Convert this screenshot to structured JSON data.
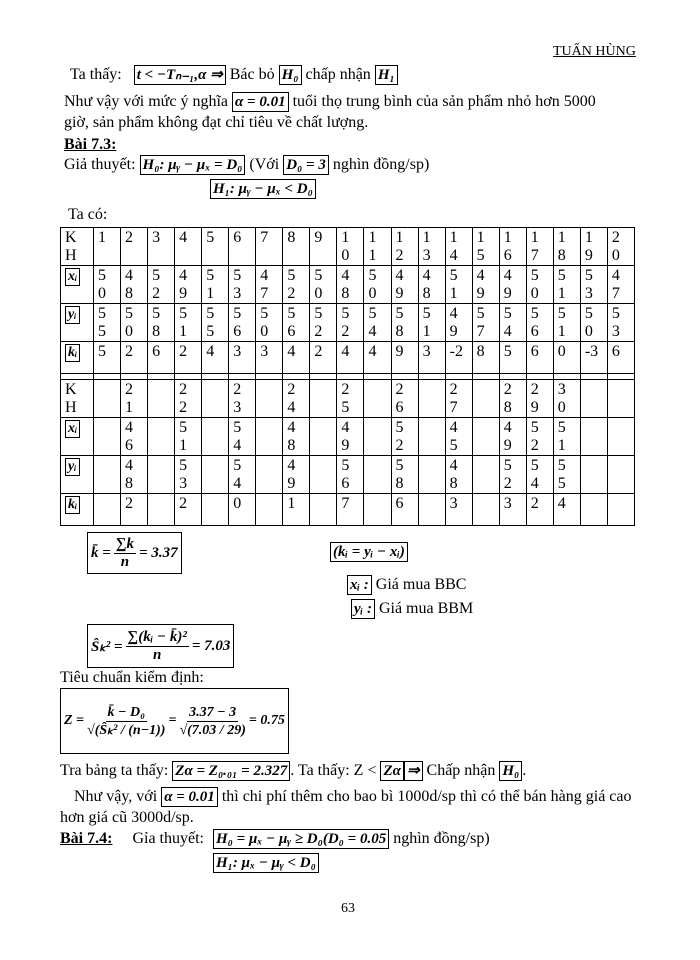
{
  "header": {
    "author": "TUẤN HÙNG"
  },
  "p1": {
    "label": "Ta thấy:",
    "cond": "t < −Tₙ₋₁,α ⇒",
    "t1": "Bác bỏ",
    "h0": "H₀",
    "t2": "chấp nhận",
    "h1": "H₁"
  },
  "p2": {
    "t1": "Như vậy với mức ý nghĩa",
    "alpha": "α = 0.01",
    "t2": "tuổi thọ trung bình của sản phẩm nhỏ hơn 5000",
    "line2": "giờ, sản phẩm không đạt chỉ tiêu về chất lượng."
  },
  "ex73": {
    "title": "Bài 7.3:",
    "hyp_label": "Giả thuyết:",
    "h0": "H₀: μᵧ − μₓ = D₀",
    "with": "(Với",
    "d0": "D₀ = 3",
    "unit": "nghìn đồng/sp)",
    "h1": "H₁: μᵧ − μₓ < D₀",
    "taco": "Ta có:"
  },
  "table": {
    "labels": {
      "kh1": "K",
      "kh2": "H",
      "x": "xᵢ",
      "y": "yᵢ",
      "k": "kᵢ"
    },
    "part1": {
      "kh": [
        "1",
        "2",
        "3",
        "4",
        "5",
        "6",
        "7",
        "8",
        "9",
        "1\n0",
        "1\n1",
        "1\n2",
        "1\n3",
        "1\n4",
        "1\n5",
        "1\n6",
        "1\n7",
        "1\n8",
        "1\n9",
        "2\n0"
      ],
      "x": [
        "5\n0",
        "4\n8",
        "5\n2",
        "4\n9",
        "5\n1",
        "5\n3",
        "4\n7",
        "5\n2",
        "5\n0",
        "4\n8",
        "5\n0",
        "4\n9",
        "4\n8",
        "5\n1",
        "4\n9",
        "4\n9",
        "5\n0",
        "5\n1",
        "5\n3",
        "4\n7"
      ],
      "y": [
        "5\n5",
        "5\n0",
        "5\n8",
        "5\n1",
        "5\n5",
        "5\n6",
        "5\n0",
        "5\n6",
        "5\n2",
        "5\n2",
        "5\n4",
        "5\n8",
        "5\n1",
        "4\n9",
        "5\n7",
        "5\n4",
        "5\n6",
        "5\n1",
        "5\n0",
        "5\n3"
      ],
      "k": [
        "5",
        "2",
        "6",
        "2",
        "4",
        "3",
        "3",
        "4",
        "2",
        "4",
        "4",
        "9",
        "3",
        "-2",
        "8",
        "5",
        "6",
        "0",
        "-3",
        "6"
      ]
    },
    "part2": {
      "kh": [
        "",
        "2\n1",
        "",
        "2\n2",
        "",
        "2\n3",
        "",
        "2\n4",
        "",
        "2\n5",
        "",
        "2\n6",
        "",
        "2\n7",
        "",
        "2\n8",
        "2\n9",
        "3\n0",
        "",
        ""
      ],
      "x": [
        "",
        "4\n6",
        "",
        "5\n1",
        "",
        "5\n4",
        "",
        "4\n8",
        "",
        "4\n9",
        "",
        "5\n2",
        "",
        "4\n5",
        "",
        "4\n9",
        "5\n2",
        "5\n1",
        "",
        ""
      ],
      "y": [
        "",
        "4\n8",
        "",
        "5\n3",
        "",
        "5\n4",
        "",
        "4\n9",
        "",
        "5\n6",
        "",
        "5\n8",
        "",
        "4\n8",
        "",
        "5\n2",
        "5\n4",
        "5\n5",
        "",
        ""
      ],
      "k": [
        "",
        "2",
        "",
        "2",
        "",
        "0",
        "",
        "1",
        "",
        "7",
        "",
        "6",
        "",
        "3",
        "",
        "3",
        "2",
        "4",
        "",
        ""
      ]
    }
  },
  "formulas": {
    "kbar": {
      "lhs": "k̄ =",
      "num": "∑k",
      "den": "n",
      "rhs": "= 3.37"
    },
    "kdef": "(kᵢ = yᵢ − xᵢ)",
    "legend": [
      {
        "sym": "xᵢ :",
        "text": "Giá mua BBC"
      },
      {
        "sym": "yᵢ :",
        "text": "Giá mua BBM"
      }
    ],
    "s2": {
      "lhs": "Ŝₖ² =",
      "num": "∑(kᵢ − k̄)²",
      "den": "n",
      "rhs": "= 7.03"
    },
    "test_label": "Tiêu chuẩn kiểm định:",
    "z": {
      "lhs": "Z =",
      "num1": "k̄ − D₀",
      "den1": "√(Ŝₖ² / (n−1))",
      "num2": "3.37 − 3",
      "den2": "√(7.03 / 29)",
      "rhs": "= 0.75"
    }
  },
  "conclusion": {
    "t1": "Tra bảng ta thấy:",
    "za": "Zα = Z₀.₀₁ = 2.327",
    "t2": ". Ta thấy: Z <",
    "zsym": "Zα",
    "arrow": "⇒",
    "t3": "Chấp nhận",
    "h0": "H₀",
    "t4": ".",
    "p_t1": "Như vậy, với",
    "alpha": "α = 0.01",
    "p_t2": "thì chi phí thêm cho bao bì 1000d/sp thì có thể bán hàng giá cao",
    "p_line2": "hơn giá cũ 3000d/sp."
  },
  "ex74": {
    "title": "Bài 7.4:",
    "hyp_label": "Gỉa thuyết:",
    "h0": "H₀ = μₓ − μᵧ ≥ D₀(D₀ = 0.05",
    "unit": "nghìn đồng/sp)",
    "h1": "H₁: μₓ − μᵧ < D₀"
  },
  "footer": {
    "page_number": "63"
  }
}
